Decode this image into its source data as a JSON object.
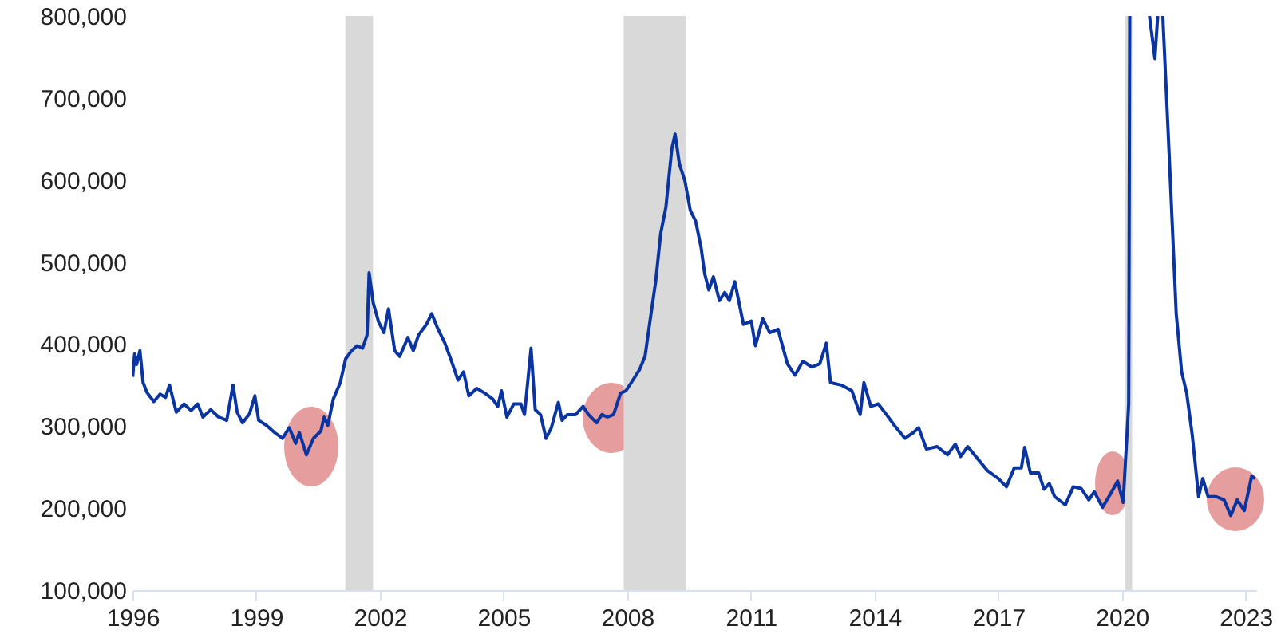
{
  "chart_data": {
    "type": "line",
    "x": [
      "1996-01-03",
      "1996-01-20",
      "1996-02-06",
      "1996-03-07",
      "1996-04-04",
      "1996-05-08",
      "1996-07-08",
      "1996-09-01",
      "1996-10-20",
      "1996-11-24",
      "1997-01-23",
      "1997-04-01",
      "1997-06-03",
      "1997-07-31",
      "1997-09-16",
      "1997-11-24",
      "1998-02-02",
      "1998-04-15",
      "1998-06-10",
      "1998-07-16",
      "1998-09-02",
      "1998-11-03",
      "1998-12-20",
      "1999-01-23",
      "1999-04-01",
      "1999-06-14",
      "1999-08-22",
      "1999-10-20",
      "1999-12-17",
      "2000-01-19",
      "2000-03-21",
      "2000-05-22",
      "2000-07-27",
      "2000-08-25",
      "2000-09-27",
      "2000-11-14",
      "2001-01-15",
      "2001-03-03",
      "2001-04-26",
      "2001-06-13",
      "2001-07-31",
      "2001-09-09",
      "2001-09-27",
      "2001-11-03",
      "2001-12-20",
      "2002-02-06",
      "2002-03-18",
      "2002-05-12",
      "2002-06-25",
      "2002-09-06",
      "2002-10-24",
      "2002-12-09",
      "2003-02-17",
      "2003-04-05",
      "2003-05-22",
      "2003-07-31",
      "2003-09-20",
      "2003-11-24",
      "2004-01-12",
      "2004-02-28",
      "2004-05-08",
      "2004-07-20",
      "2004-09-27",
      "2004-11-10",
      "2004-12-13",
      "2005-01-30",
      "2005-04-01",
      "2005-06-03",
      "2005-07-05",
      "2005-09-01",
      "2005-10-08",
      "2005-11-24",
      "2006-01-12",
      "2006-02-28",
      "2006-05-01",
      "2006-06-03",
      "2006-07-20",
      "2006-10-01",
      "2006-12-06",
      "2007-01-23",
      "2007-04-05",
      "2007-05-22",
      "2007-07-09",
      "2007-09-02",
      "2007-11-03",
      "2007-12-20",
      "2008-02-06",
      "2008-04-20",
      "2008-06-07",
      "2008-07-24",
      "2008-09-09",
      "2008-10-24",
      "2008-12-09",
      "2009-01-30",
      "2009-02-28",
      "2009-04-08",
      "2009-05-26",
      "2009-07-13",
      "2009-08-29",
      "2009-10-16",
      "2009-11-17",
      "2009-12-24",
      "2010-02-02",
      "2010-03-28",
      "2010-05-15",
      "2010-06-24",
      "2010-08-11",
      "2010-10-27",
      "2011-01-04",
      "2011-02-10",
      "2011-04-16",
      "2011-06-17",
      "2011-08-29",
      "2011-11-20",
      "2012-01-26",
      "2012-04-05",
      "2012-06-24",
      "2012-09-02",
      "2012-10-30",
      "2012-12-06",
      "2013-03-11",
      "2013-06-14",
      "2013-08-26",
      "2013-09-28",
      "2013-11-28",
      "2014-02-02",
      "2014-04-16",
      "2014-06-24",
      "2014-09-27",
      "2014-12-09",
      "2015-01-26",
      "2015-04-05",
      "2015-07-09",
      "2015-10-08",
      "2015-12-17",
      "2016-02-02",
      "2016-04-05",
      "2016-06-21",
      "2016-09-24",
      "2017-01-01",
      "2017-03-14",
      "2017-05-22",
      "2017-07-24",
      "2017-08-22",
      "2017-10-12",
      "2017-12-24",
      "2018-02-10",
      "2018-03-28",
      "2018-05-15",
      "2018-08-18",
      "2018-10-27",
      "2019-01-04",
      "2019-03-14",
      "2019-05-01",
      "2019-07-13",
      "2019-09-20",
      "2019-11-24",
      "2020-01-12",
      "2020-03-01",
      "2020-03-10",
      "2020-06-01",
      "2020-09-01",
      "2020-10-19",
      "2020-11-13",
      "2020-12-01",
      "2020-12-28",
      "2021-02-16",
      "2021-04-26",
      "2021-06-13",
      "2021-07-28",
      "2021-09-16",
      "2021-11-10",
      "2021-12-17",
      "2022-02-02",
      "2022-04-16",
      "2022-06-24",
      "2022-08-22",
      "2022-10-19",
      "2022-12-20",
      "2023-02-24",
      "2023-03-25"
    ],
    "series": [
      {
        "color": "#0a34a0",
        "values": [
          360000,
          388000,
          375000,
          392000,
          353000,
          341000,
          330000,
          339000,
          335000,
          350000,
          317000,
          327000,
          319000,
          327000,
          311000,
          320000,
          311000,
          307000,
          350000,
          317000,
          304000,
          315000,
          337000,
          307000,
          301000,
          292000,
          285000,
          298000,
          279000,
          292000,
          265000,
          285000,
          294000,
          311000,
          301000,
          333000,
          353000,
          382000,
          392000,
          398000,
          395000,
          411000,
          487000,
          450000,
          427000,
          414000,
          443000,
          392000,
          385000,
          408000,
          392000,
          411000,
          424000,
          437000,
          421000,
          401000,
          382000,
          356000,
          366000,
          337000,
          346000,
          340000,
          333000,
          324000,
          343000,
          311000,
          327000,
          327000,
          314000,
          395000,
          320000,
          314000,
          285000,
          298000,
          329000,
          307000,
          314000,
          314000,
          324000,
          314000,
          304000,
          314000,
          311000,
          314000,
          340000,
          343000,
          353000,
          369000,
          385000,
          431000,
          476000,
          535000,
          567000,
          638000,
          656000,
          619000,
          599000,
          563000,
          550000,
          518000,
          486000,
          466000,
          482000,
          453000,
          463000,
          453000,
          476000,
          424000,
          428000,
          398000,
          431000,
          414000,
          418000,
          376000,
          362000,
          379000,
          372000,
          376000,
          401000,
          353000,
          350000,
          343000,
          314000,
          353000,
          324000,
          327000,
          314000,
          301000,
          285000,
          292000,
          298000,
          272000,
          275000,
          265000,
          278000,
          263000,
          275000,
          262000,
          246000,
          236000,
          226000,
          249000,
          249000,
          274000,
          243000,
          243000,
          223000,
          230000,
          214000,
          204000,
          226000,
          224000,
          210000,
          220000,
          201000,
          217000,
          233000,
          207000,
          327000,
          800000,
          null,
          800000,
          748000,
          800000,
          null,
          800000,
          651000,
          437000,
          366000,
          340000,
          288000,
          214000,
          236000,
          214000,
          214000,
          210000,
          191000,
          210000,
          197000,
          239000,
          236000
        ]
      }
    ],
    "xlim": [
      "1996-01-01",
      "2023-04-05"
    ],
    "xticks": [
      {
        "value": "1996",
        "label": "1996"
      },
      {
        "value": "1999",
        "label": "1999"
      },
      {
        "value": "2002",
        "label": "2002"
      },
      {
        "value": "2005",
        "label": "2005"
      },
      {
        "value": "2008",
        "label": "2008"
      },
      {
        "value": "2011",
        "label": "2011"
      },
      {
        "value": "2014",
        "label": "2014"
      },
      {
        "value": "2017",
        "label": "2017"
      },
      {
        "value": "2020",
        "label": "2020"
      },
      {
        "value": "2023",
        "label": "2023"
      }
    ],
    "ylim": [
      100000,
      800000
    ],
    "yticks": [
      {
        "value": 100000,
        "label": "100,000"
      },
      {
        "value": 200000,
        "label": "200,000"
      },
      {
        "value": 300000,
        "label": "300,000"
      },
      {
        "value": 400000,
        "label": "400,000"
      },
      {
        "value": 500000,
        "label": "500,000"
      },
      {
        "value": 600000,
        "label": "600,000"
      },
      {
        "value": 700000,
        "label": "700,000"
      },
      {
        "value": 800000,
        "label": "800,000"
      }
    ],
    "bands": [
      {
        "axis": "x",
        "from": "2001-03-01",
        "to": "2001-11-01",
        "color": "#d9d9d9"
      },
      {
        "axis": "x",
        "from": "2007-12-01",
        "to": "2009-06-01",
        "color": "#d9d9d9"
      },
      {
        "axis": "x",
        "from": "2020-02-01",
        "to": "2020-04-01",
        "color": "#d9d9d9"
      }
    ],
    "grid": false,
    "line_style": "solid",
    "marker": "none"
  }
}
